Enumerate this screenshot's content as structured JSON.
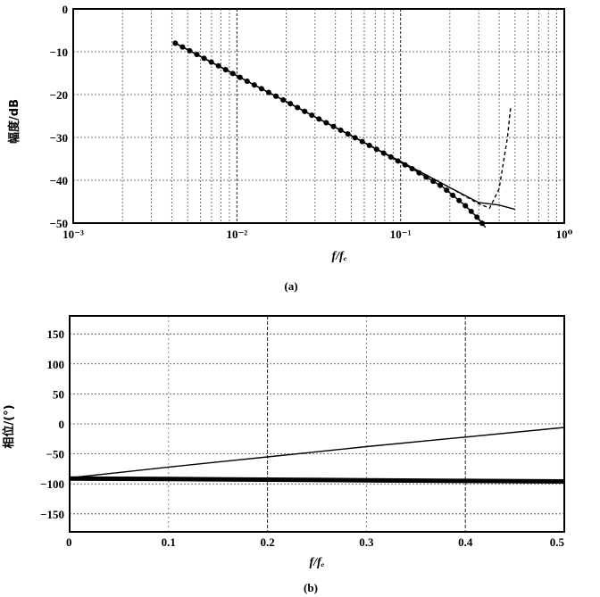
{
  "chart_data": [
    {
      "type": "line",
      "panel_label": "(a)",
      "xlabel": "f/fₑ",
      "ylabel": "幅度/dB",
      "xscale": "log",
      "xlim": [
        0.001,
        1
      ],
      "ylim": [
        -50,
        0
      ],
      "grid": true,
      "x_tick_labels": [
        "10⁻³",
        "10⁻²",
        "10⁻¹",
        "10⁰"
      ],
      "y_tick_labels": [
        "0",
        "−10",
        "−20",
        "−30",
        "−40",
        "−50"
      ],
      "y_ticks": [
        0,
        -10,
        -20,
        -30,
        -40,
        -50
      ],
      "series": [
        {
          "style": "thin solid line",
          "x": [
            0.0042,
            0.01,
            0.03,
            0.1,
            0.2,
            0.3,
            0.4,
            0.5
          ],
          "y": [
            -8,
            -15.6,
            -25.2,
            -35.6,
            -41.7,
            -45.2,
            -45.8,
            -46.8
          ]
        },
        {
          "style": "thick dotted line",
          "x": [
            0.0042,
            0.008,
            0.012,
            0.02,
            0.03,
            0.05,
            0.08,
            0.12,
            0.18,
            0.25,
            0.3,
            0.33
          ],
          "y": [
            -8,
            -13.6,
            -17.2,
            -21.6,
            -25.2,
            -29.6,
            -33.8,
            -37.5,
            -41.5,
            -46,
            -49,
            -51
          ]
        },
        {
          "style": "dashed line",
          "x": [
            0.1,
            0.2,
            0.3,
            0.35,
            0.4,
            0.45,
            0.47
          ],
          "y": [
            -35.6,
            -41.7,
            -45.5,
            -46.5,
            -42,
            -30,
            -23
          ]
        }
      ]
    },
    {
      "type": "line",
      "panel_label": "(b)",
      "xlabel": "f/fₑ",
      "ylabel": "相位/(°)",
      "xlim": [
        0,
        0.5
      ],
      "ylim": [
        -180,
        180
      ],
      "grid": true,
      "x_ticks": [
        0,
        0.1,
        0.2,
        0.3,
        0.4,
        0.5
      ],
      "x_tick_labels": [
        "0",
        "0.1",
        "0.2",
        "0.3",
        "0.4",
        "0.5"
      ],
      "y_ticks": [
        150,
        100,
        50,
        0,
        -50,
        -100,
        -150
      ],
      "y_tick_labels": [
        "150",
        "100",
        "50",
        "0",
        "−50",
        "−100",
        "−150"
      ],
      "series": [
        {
          "style": "thin solid line",
          "x": [
            0,
            0.1,
            0.2,
            0.3,
            0.4,
            0.5
          ],
          "y": [
            -90,
            -72,
            -55,
            -38,
            -22,
            -6
          ]
        },
        {
          "style": "thick solid line",
          "x": [
            0,
            0.1,
            0.2,
            0.3,
            0.4,
            0.5
          ],
          "y": [
            -91,
            -92,
            -93,
            -94,
            -95,
            -96
          ]
        }
      ]
    }
  ]
}
